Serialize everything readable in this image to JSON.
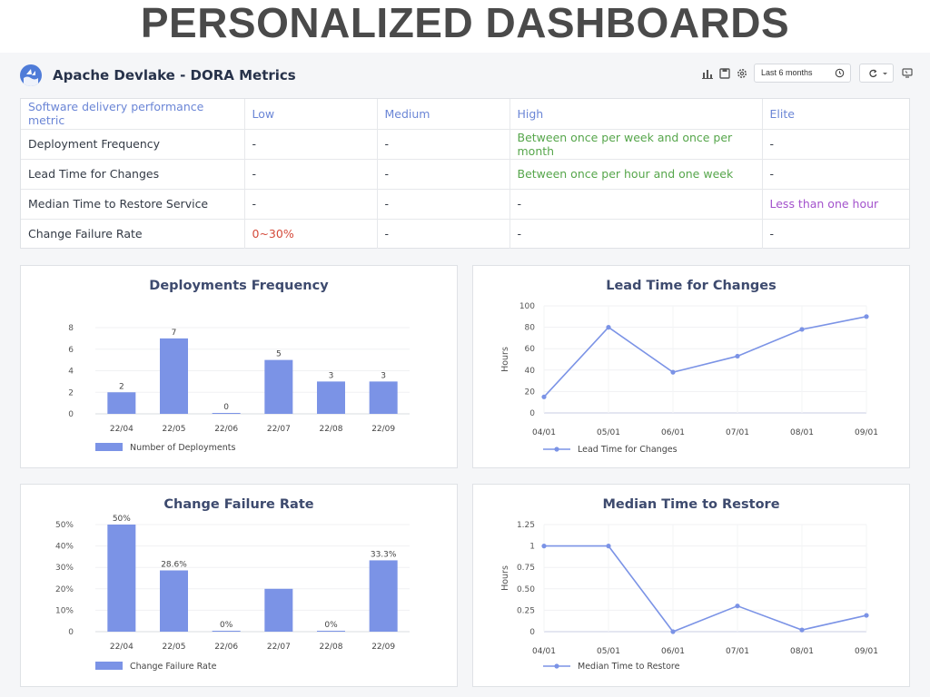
{
  "banner": {
    "title": "PERSONALIZED DASHBOARDS"
  },
  "header": {
    "title": "Apache Devlake - DORA Metrics",
    "time_range": "Last 6 months"
  },
  "colors": {
    "accent": "#7b93e6",
    "bar": "#7b93e6",
    "header_text": "#6b86d6",
    "green": "#56a64b",
    "red": "#d44a3a",
    "purple": "#a352cc"
  },
  "table": {
    "headers": [
      "Software delivery performance metric",
      "Low",
      "Medium",
      "High",
      "Elite"
    ],
    "rows": [
      [
        "Deployment Frequency",
        "-",
        "-",
        "Between once per week and once per month",
        "-"
      ],
      [
        "Lead Time for Changes",
        "-",
        "-",
        "Between once per hour and one week",
        "-"
      ],
      [
        "Median Time to Restore Service",
        "-",
        "-",
        "-",
        "Less than one hour"
      ],
      [
        "Change Failure Rate",
        "0~30%",
        "-",
        "-",
        "-"
      ]
    ]
  },
  "chart_data": [
    {
      "type": "bar",
      "title": "Deployments Frequency",
      "categories": [
        "22/04",
        "22/05",
        "22/06",
        "22/07",
        "22/08",
        "22/09"
      ],
      "series": [
        {
          "name": "Number of Deployments",
          "values": [
            2,
            7,
            0,
            5,
            3,
            3
          ]
        }
      ],
      "data_labels": [
        "2",
        "7",
        "0",
        "5",
        "3",
        "3"
      ],
      "yticks": [
        "0",
        "2",
        "4",
        "6",
        "8"
      ],
      "ylim": [
        0,
        8
      ],
      "legend": "bottom-left",
      "grid": true
    },
    {
      "type": "line",
      "title": "Lead Time for Changes",
      "x": [
        "04/01",
        "05/01",
        "06/01",
        "07/01",
        "08/01",
        "09/01"
      ],
      "series": [
        {
          "name": "Lead Time for Changes",
          "values": [
            15,
            80,
            38,
            53,
            78,
            90
          ]
        }
      ],
      "ylabel": "Hours",
      "yticks": [
        "0",
        "20",
        "40",
        "60",
        "80",
        "100"
      ],
      "ylim": [
        0,
        100
      ],
      "legend": "bottom-left",
      "grid": true
    },
    {
      "type": "bar",
      "title": "Change Failure Rate",
      "categories": [
        "22/04",
        "22/05",
        "22/06",
        "22/07",
        "22/08",
        "22/09"
      ],
      "series": [
        {
          "name": "Change Failure Rate",
          "values": [
            50,
            28.6,
            0,
            20,
            0,
            33.3
          ]
        }
      ],
      "data_labels": [
        "50%",
        "28.6%",
        "0%",
        "",
        "0%",
        "33.3%"
      ],
      "yticks": [
        "0",
        "10%",
        "20%",
        "30%",
        "40%",
        "50%"
      ],
      "ylim": [
        0,
        50
      ],
      "legend": "bottom-left",
      "grid": true
    },
    {
      "type": "line",
      "title": "Median Time to Restore",
      "x": [
        "04/01",
        "05/01",
        "06/01",
        "07/01",
        "08/01",
        "09/01"
      ],
      "series": [
        {
          "name": "Median Time to Restore",
          "values": [
            1,
            1,
            0,
            0.3,
            0.02,
            0.19
          ]
        }
      ],
      "ylabel": "Hours",
      "yticks": [
        "0",
        "0.25",
        "0.50",
        "0.75",
        "1",
        "1.25"
      ],
      "ylim": [
        0,
        1.25
      ],
      "legend": "bottom-left",
      "grid": true
    }
  ]
}
